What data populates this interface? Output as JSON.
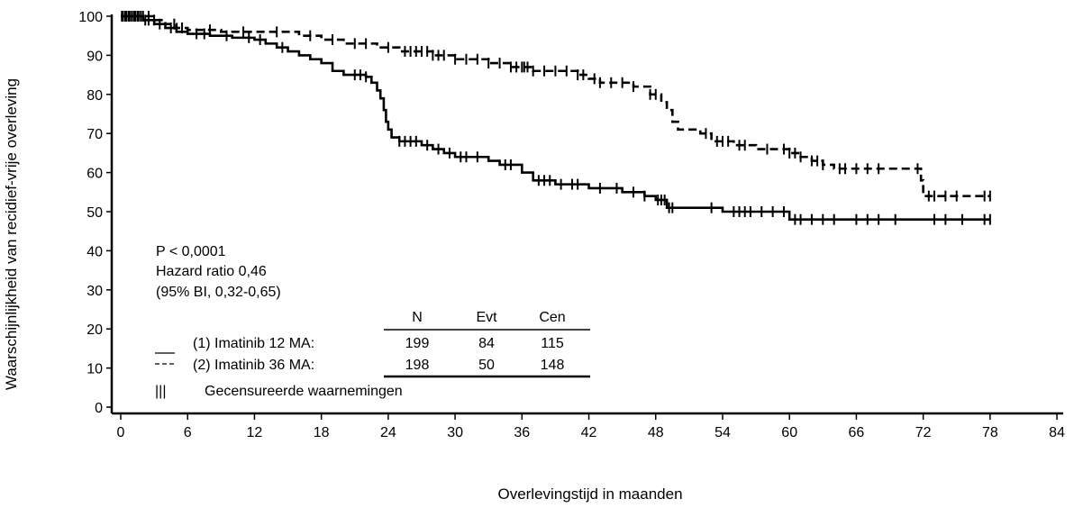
{
  "chart_data": {
    "type": "line",
    "subtype": "kaplan-meier",
    "title": "",
    "xlabel": "Overlevingstijd in maanden",
    "ylabel": "Waarschijnlijkheid van recidief-vrije overleving",
    "xlim": [
      0,
      84
    ],
    "ylim": [
      0,
      100
    ],
    "xticks": [
      0,
      6,
      12,
      18,
      24,
      30,
      36,
      42,
      48,
      54,
      60,
      66,
      72,
      78,
      84
    ],
    "yticks": [
      0,
      10,
      20,
      30,
      40,
      50,
      60,
      70,
      80,
      90,
      100
    ],
    "grid": false,
    "series": [
      {
        "name": "(1) Imatinib 12 MA",
        "style": "solid",
        "color": "#000000",
        "steps": [
          [
            0,
            100
          ],
          [
            2,
            99
          ],
          [
            3,
            98
          ],
          [
            4,
            97
          ],
          [
            5,
            96
          ],
          [
            6,
            95.5
          ],
          [
            8,
            95
          ],
          [
            10,
            94.5
          ],
          [
            12,
            94
          ],
          [
            13,
            93
          ],
          [
            14,
            92
          ],
          [
            15,
            91
          ],
          [
            16,
            90
          ],
          [
            17,
            89
          ],
          [
            18,
            88
          ],
          [
            19,
            86
          ],
          [
            20,
            85
          ],
          [
            22,
            84.5
          ],
          [
            22.5,
            83
          ],
          [
            23,
            81
          ],
          [
            23.3,
            79
          ],
          [
            23.6,
            76
          ],
          [
            23.8,
            73
          ],
          [
            24,
            71
          ],
          [
            24.3,
            69
          ],
          [
            25,
            68
          ],
          [
            27,
            67
          ],
          [
            28,
            66
          ],
          [
            29,
            65
          ],
          [
            30,
            64
          ],
          [
            33,
            63
          ],
          [
            34,
            62
          ],
          [
            36,
            60
          ],
          [
            37,
            58
          ],
          [
            39,
            57
          ],
          [
            42,
            56
          ],
          [
            45,
            55
          ],
          [
            47,
            54
          ],
          [
            48,
            53
          ],
          [
            49,
            51
          ],
          [
            54,
            50
          ],
          [
            60,
            48
          ],
          [
            78,
            48
          ]
        ],
        "censored": [
          0.2,
          0.5,
          0.8,
          1,
          1.2,
          1.5,
          1.8,
          2.2,
          2.5,
          3.5,
          4.5,
          6.8,
          7.5,
          9.5,
          11.5,
          12.5,
          14.5,
          21,
          21.5,
          22,
          25,
          25.5,
          26,
          26.5,
          27.5,
          28.5,
          29.5,
          30.5,
          31,
          32,
          34.5,
          35,
          37.5,
          38,
          38.5,
          39.5,
          40.5,
          41,
          43,
          44.5,
          46,
          47,
          48.2,
          48.5,
          48.8,
          49.2,
          49.5,
          53,
          55,
          55.5,
          56,
          56.5,
          57.5,
          58.5,
          59.5,
          60.5,
          61,
          62,
          63,
          64,
          66,
          67,
          68,
          69.5,
          73,
          74,
          75.5,
          77.5,
          78
        ]
      },
      {
        "name": "(2) Imatinib 36 MA",
        "style": "dashed",
        "color": "#000000",
        "steps": [
          [
            0,
            100
          ],
          [
            3,
            99
          ],
          [
            4,
            98
          ],
          [
            5,
            97
          ],
          [
            6,
            96.5
          ],
          [
            9,
            96
          ],
          [
            16,
            95
          ],
          [
            18,
            94
          ],
          [
            20,
            93
          ],
          [
            23,
            92
          ],
          [
            25,
            91
          ],
          [
            28,
            90
          ],
          [
            30,
            89
          ],
          [
            33,
            88
          ],
          [
            35,
            87
          ],
          [
            37,
            86
          ],
          [
            40,
            86
          ],
          [
            41,
            85
          ],
          [
            42,
            84
          ],
          [
            43,
            83
          ],
          [
            46,
            82
          ],
          [
            47.5,
            80
          ],
          [
            48.5,
            78
          ],
          [
            49,
            76
          ],
          [
            49.5,
            73
          ],
          [
            50,
            71
          ],
          [
            52,
            70
          ],
          [
            53,
            68
          ],
          [
            55,
            67
          ],
          [
            57,
            66
          ],
          [
            60,
            65
          ],
          [
            61,
            64
          ],
          [
            62,
            63
          ],
          [
            63,
            62
          ],
          [
            64,
            61
          ],
          [
            71.5,
            61
          ],
          [
            71.8,
            58
          ],
          [
            72,
            54
          ],
          [
            78,
            54
          ]
        ],
        "censored": [
          0.1,
          0.4,
          0.7,
          1,
          1.3,
          1.6,
          2,
          2.5,
          3,
          4.8,
          5.5,
          8,
          11,
          14,
          17,
          19,
          21,
          22,
          24,
          25.5,
          26,
          26.5,
          27,
          27.5,
          28,
          28.5,
          29,
          30,
          31,
          32,
          33,
          34,
          35,
          35.5,
          36,
          36.2,
          36.5,
          37,
          38,
          39,
          40,
          41,
          41.5,
          42.5,
          43,
          44,
          45,
          46,
          47.5,
          48,
          52.5,
          53.5,
          54,
          54.5,
          55.5,
          56,
          58,
          59.5,
          60,
          60.5,
          61,
          62,
          62.5,
          63,
          64.5,
          65,
          66,
          67,
          68,
          71.5,
          72.5,
          73,
          74,
          75,
          77.5,
          78
        ]
      }
    ],
    "annotations": {
      "pvalue": "P < 0,0001",
      "hr": "Hazard ratio 0,46",
      "ci": "(95% BI, 0,32-0,65)"
    },
    "table": {
      "headers": [
        "N",
        "Evt",
        "Cen"
      ],
      "rows": [
        {
          "symbol": "__",
          "label": "(1) Imatinib 12 MA:",
          "values": [
            "199",
            "84",
            "115"
          ]
        },
        {
          "symbol": "---",
          "label": "(2) Imatinib 36 MA:",
          "values": [
            "198",
            "50",
            "148"
          ]
        }
      ]
    },
    "censor_legend": {
      "symbol": "|||",
      "label": "Gecensureerde waarnemingen"
    }
  }
}
